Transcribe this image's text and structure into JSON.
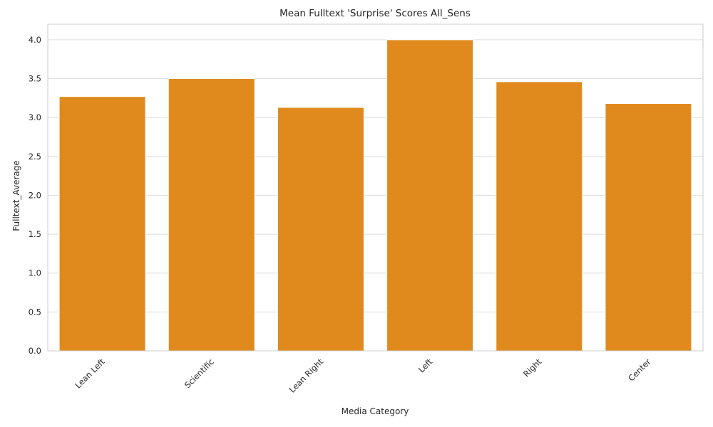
{
  "chart_data": {
    "type": "bar",
    "title": "Mean Fulltext 'Surprise' Scores All_Sens",
    "xlabel": "Media Category",
    "ylabel": "Fulltext_Average",
    "categories": [
      "Lean Left",
      "Scientific",
      "Lean Right",
      "Left",
      "Right",
      "Center"
    ],
    "values": [
      3.27,
      3.5,
      3.13,
      4.0,
      3.46,
      3.18
    ],
    "ylim": [
      0,
      4.2
    ],
    "yticks": [
      "0.0",
      "0.5",
      "1.0",
      "1.5",
      "2.0",
      "2.5",
      "3.0",
      "3.5",
      "4.0"
    ],
    "bar_color": "#e08a1e",
    "grid": "horizontal",
    "tick_rotation": -45
  }
}
